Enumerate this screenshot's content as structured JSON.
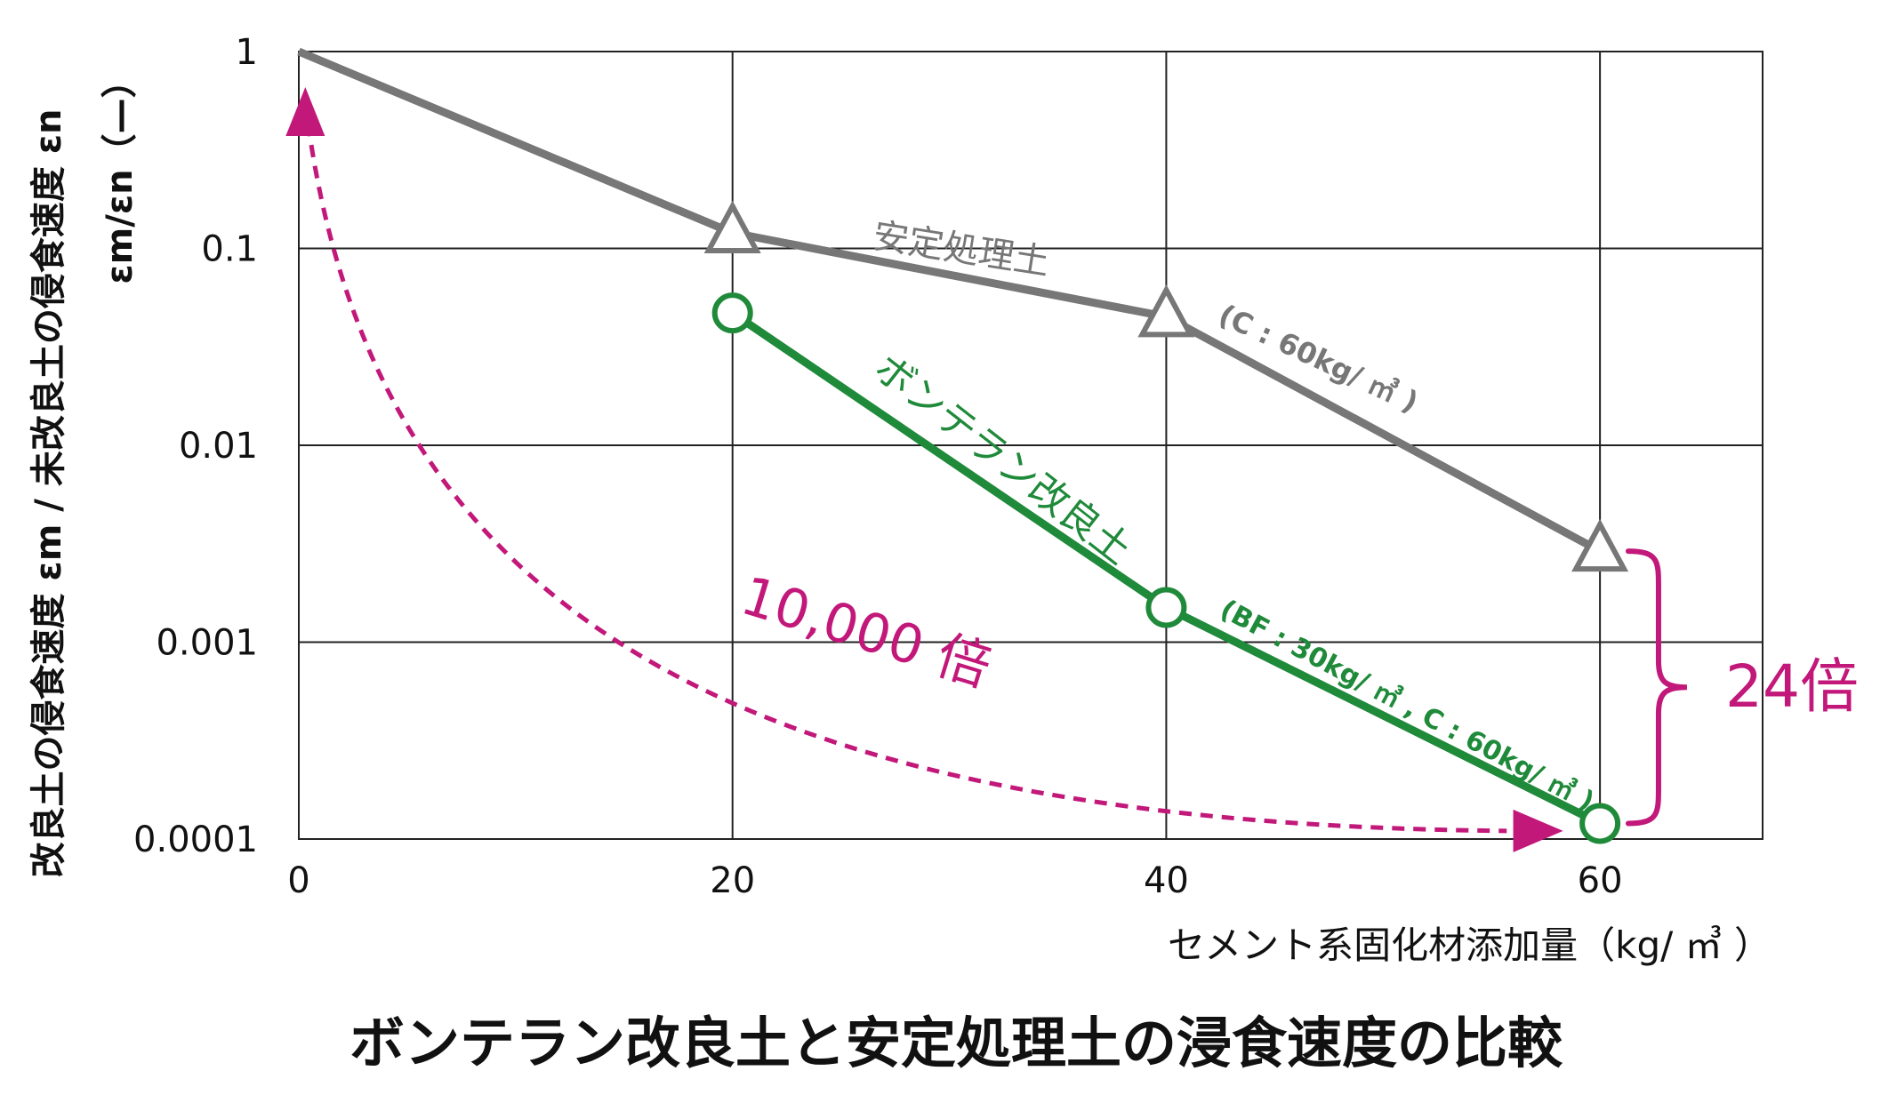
{
  "chart_data": {
    "type": "line",
    "title": "ボンテラン改良土と安定処理土の浸食速度の比較",
    "ylabel_line1": "改良土の侵食速度 εm / 未改良土の侵食速度 εn",
    "ylabel_line2": "εm/εn（—）",
    "xlabel": "セメント系固化材添加量（kg/ ㎥ ）",
    "x_ticks": [
      "0",
      "20",
      "40",
      "60"
    ],
    "y_ticks": [
      "1",
      "0.1",
      "0.01",
      "0.001",
      "0.0001"
    ],
    "xlim": [
      0,
      67.5
    ],
    "ylim": [
      0.0001,
      1
    ],
    "y_scale": "log",
    "grid": true,
    "series": [
      {
        "name": "安定処理土",
        "note": "(C : 60kg/ ㎥ )",
        "color": "#777777",
        "marker": "triangle",
        "x": [
          0,
          20,
          40,
          60
        ],
        "y": [
          1,
          0.12,
          0.045,
          0.0029
        ]
      },
      {
        "name": "ボンテラン改良土",
        "note": "(BF : 30kg/ ㎥ , C : 60kg/ ㎥ )",
        "color": "#1f8a3a",
        "marker": "circle",
        "x": [
          20,
          40,
          60
        ],
        "y": [
          0.047,
          0.0015,
          0.00012
        ]
      }
    ],
    "annotations": {
      "ratio_label": "24倍",
      "arrow_label": "10,000 倍",
      "accent_color": "#c2187a"
    }
  }
}
